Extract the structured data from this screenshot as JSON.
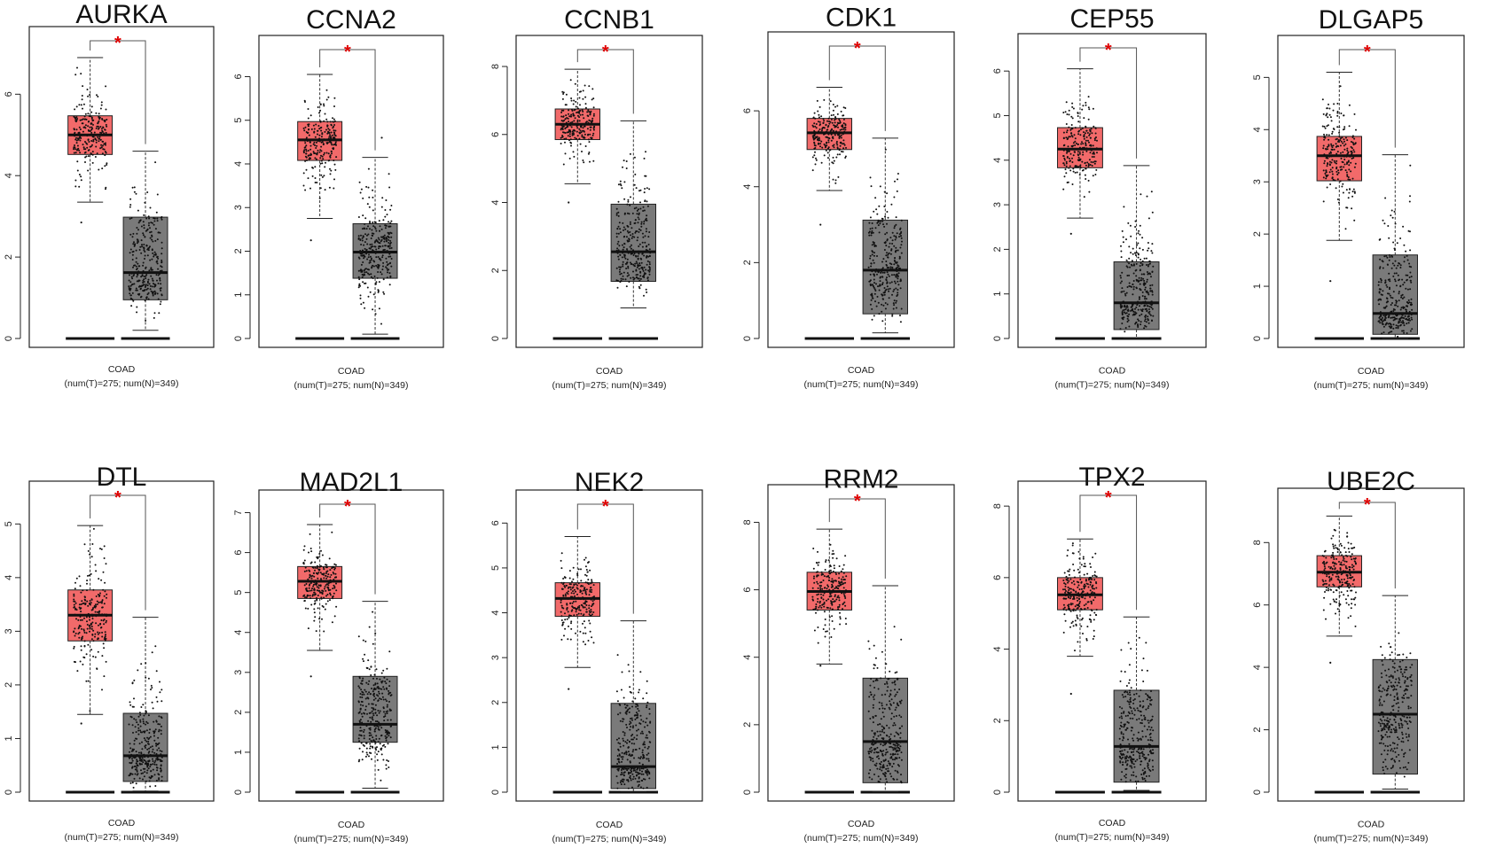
{
  "chart_data": [
    {
      "type": "box",
      "title": "AURKA",
      "ylim": [
        0,
        7.4
      ],
      "yticks": [
        0,
        2,
        4,
        6
      ],
      "xlabel": "COAD",
      "xsublabel": "(num(T)=275; num(N)=349)",
      "significance": "*",
      "series": [
        {
          "name": "T",
          "color": "#f26a6a",
          "n": 275,
          "whisker_low": 3.35,
          "q1": 4.52,
          "median": 5.0,
          "q3": 5.47,
          "whisker_high": 6.9,
          "min_point": 2.85
        },
        {
          "name": "N",
          "color": "#7a7a7a",
          "n": 349,
          "whisker_low": 0.2,
          "q1": 0.95,
          "median": 1.62,
          "q3": 2.98,
          "whisker_high": 4.6
        }
      ]
    },
    {
      "type": "box",
      "title": "CCNA2",
      "ylim": [
        0,
        6.7
      ],
      "yticks": [
        0,
        1,
        2,
        3,
        4,
        5,
        6
      ],
      "xlabel": "COAD",
      "xsublabel": "(num(T)=275; num(N)=349)",
      "significance": "*",
      "series": [
        {
          "name": "T",
          "color": "#f26a6a",
          "n": 275,
          "whisker_low": 2.75,
          "q1": 4.08,
          "median": 4.55,
          "q3": 4.97,
          "whisker_high": 6.05,
          "min_point": 2.25
        },
        {
          "name": "N",
          "color": "#7a7a7a",
          "n": 349,
          "whisker_low": 0.1,
          "q1": 1.38,
          "median": 1.98,
          "q3": 2.63,
          "whisker_high": 4.15,
          "max_point": 4.6
        }
      ]
    },
    {
      "type": "box",
      "title": "CCNB1",
      "ylim": [
        0,
        8.6
      ],
      "yticks": [
        0,
        2,
        4,
        6,
        8
      ],
      "xlabel": "COAD",
      "xsublabel": "(num(T)=275; num(N)=349)",
      "significance": "*",
      "series": [
        {
          "name": "T",
          "color": "#f26a6a",
          "n": 275,
          "whisker_low": 4.55,
          "q1": 5.85,
          "median": 6.3,
          "q3": 6.75,
          "whisker_high": 7.92,
          "min_point": 4.0
        },
        {
          "name": "N",
          "color": "#7a7a7a",
          "n": 349,
          "whisker_low": 0.9,
          "q1": 1.68,
          "median": 2.55,
          "q3": 3.95,
          "whisker_high": 6.4
        }
      ]
    },
    {
      "type": "box",
      "title": "CDK1",
      "ylim": [
        0,
        7.8
      ],
      "yticks": [
        0,
        2,
        4,
        6
      ],
      "xlabel": "COAD",
      "xsublabel": "(num(T)=275; num(N)=349)",
      "significance": "*",
      "series": [
        {
          "name": "T",
          "color": "#f26a6a",
          "n": 275,
          "whisker_low": 3.9,
          "q1": 4.98,
          "median": 5.42,
          "q3": 5.8,
          "whisker_high": 6.62,
          "min_point": 3.0
        },
        {
          "name": "N",
          "color": "#7a7a7a",
          "n": 349,
          "whisker_low": 0.15,
          "q1": 0.65,
          "median": 1.8,
          "q3": 3.12,
          "whisker_high": 5.28
        }
      ]
    },
    {
      "type": "box",
      "title": "CEP55",
      "ylim": [
        0,
        6.6
      ],
      "yticks": [
        0,
        1,
        2,
        3,
        4,
        5,
        6
      ],
      "xlabel": "COAD",
      "xsublabel": "(num(T)=275; num(N)=349)",
      "significance": "*",
      "series": [
        {
          "name": "T",
          "color": "#f26a6a",
          "n": 275,
          "whisker_low": 2.7,
          "q1": 3.83,
          "median": 4.25,
          "q3": 4.73,
          "whisker_high": 6.05,
          "min_point": 2.35
        },
        {
          "name": "N",
          "color": "#7a7a7a",
          "n": 349,
          "whisker_low": 0.02,
          "q1": 0.2,
          "median": 0.8,
          "q3": 1.72,
          "whisker_high": 3.88
        }
      ]
    },
    {
      "type": "box",
      "title": "DLGAP5",
      "ylim": [
        0,
        5.6
      ],
      "yticks": [
        0,
        1,
        2,
        3,
        4,
        5
      ],
      "xlabel": "COAD",
      "xsublabel": "(num(T)=275; num(N)=349)",
      "significance": "*",
      "series": [
        {
          "name": "T",
          "color": "#f26a6a",
          "n": 275,
          "whisker_low": 1.88,
          "q1": 3.02,
          "median": 3.5,
          "q3": 3.87,
          "whisker_high": 5.1,
          "min_point": 1.1
        },
        {
          "name": "N",
          "color": "#7a7a7a",
          "n": 349,
          "whisker_low": 0.0,
          "q1": 0.08,
          "median": 0.48,
          "q3": 1.6,
          "whisker_high": 3.52
        }
      ]
    },
    {
      "type": "box",
      "title": "DTL",
      "ylim": [
        0,
        5.6
      ],
      "yticks": [
        0,
        1,
        2,
        3,
        4,
        5
      ],
      "xlabel": "COAD",
      "xsublabel": "(num(T)=275; num(N)=349)",
      "significance": "*",
      "series": [
        {
          "name": "T",
          "color": "#f26a6a",
          "n": 275,
          "whisker_low": 1.45,
          "q1": 2.82,
          "median": 3.3,
          "q3": 3.77,
          "whisker_high": 4.97,
          "min_point": 1.28
        },
        {
          "name": "N",
          "color": "#7a7a7a",
          "n": 349,
          "whisker_low": 0.02,
          "q1": 0.2,
          "median": 0.68,
          "q3": 1.47,
          "whisker_high": 3.26
        }
      ]
    },
    {
      "type": "box",
      "title": "MAD2L1",
      "ylim": [
        0,
        7.3
      ],
      "yticks": [
        0,
        1,
        2,
        3,
        4,
        5,
        6,
        7
      ],
      "xlabel": "COAD",
      "xsublabel": "(num(T)=275; num(N)=349)",
      "significance": "*",
      "series": [
        {
          "name": "T",
          "color": "#f26a6a",
          "n": 275,
          "whisker_low": 3.55,
          "q1": 4.85,
          "median": 5.28,
          "q3": 5.65,
          "whisker_high": 6.7,
          "min_point": 2.9
        },
        {
          "name": "N",
          "color": "#7a7a7a",
          "n": 349,
          "whisker_low": 0.1,
          "q1": 1.25,
          "median": 1.7,
          "q3": 2.9,
          "whisker_high": 4.78
        }
      ]
    },
    {
      "type": "box",
      "title": "NEK2",
      "ylim": [
        0,
        6.5
      ],
      "yticks": [
        0,
        1,
        2,
        3,
        4,
        5,
        6
      ],
      "xlabel": "COAD",
      "xsublabel": "(num(T)=275; num(N)=349)",
      "significance": "*",
      "series": [
        {
          "name": "T",
          "color": "#f26a6a",
          "n": 275,
          "whisker_low": 2.78,
          "q1": 3.92,
          "median": 4.32,
          "q3": 4.67,
          "whisker_high": 5.7,
          "min_point": 2.3
        },
        {
          "name": "N",
          "color": "#7a7a7a",
          "n": 349,
          "whisker_low": 0.02,
          "q1": 0.08,
          "median": 0.57,
          "q3": 1.98,
          "whisker_high": 3.82
        }
      ]
    },
    {
      "type": "box",
      "title": "RRM2",
      "ylim": [
        0,
        8.8
      ],
      "yticks": [
        0,
        2,
        4,
        6,
        8
      ],
      "xlabel": "COAD",
      "xsublabel": "(num(T)=275; num(N)=349)",
      "significance": "*",
      "series": [
        {
          "name": "T",
          "color": "#f26a6a",
          "n": 275,
          "whisker_low": 3.8,
          "q1": 5.4,
          "median": 5.95,
          "q3": 6.52,
          "whisker_high": 7.8,
          "min_point": 3.75
        },
        {
          "name": "N",
          "color": "#7a7a7a",
          "n": 349,
          "whisker_low": 0.02,
          "q1": 0.28,
          "median": 1.5,
          "q3": 3.38,
          "whisker_high": 6.12
        }
      ]
    },
    {
      "type": "box",
      "title": "TPX2",
      "ylim": [
        0,
        8.4
      ],
      "yticks": [
        0,
        2,
        4,
        6,
        8
      ],
      "xlabel": "COAD",
      "xsublabel": "(num(T)=275; num(N)=349)",
      "significance": "*",
      "series": [
        {
          "name": "T",
          "color": "#f26a6a",
          "n": 275,
          "whisker_low": 3.8,
          "q1": 5.1,
          "median": 5.52,
          "q3": 6.0,
          "whisker_high": 7.08,
          "min_point": 2.75
        },
        {
          "name": "N",
          "color": "#7a7a7a",
          "n": 349,
          "whisker_low": 0.05,
          "q1": 0.28,
          "median": 1.28,
          "q3": 2.85,
          "whisker_high": 4.9
        }
      ]
    },
    {
      "type": "box",
      "title": "UBE2C",
      "ylim": [
        0,
        9.4
      ],
      "yticks": [
        0,
        2,
        4,
        6,
        8
      ],
      "xlabel": "COAD",
      "xsublabel": "(num(T)=275; num(N)=349)",
      "significance": "*",
      "series": [
        {
          "name": "T",
          "color": "#f26a6a",
          "n": 275,
          "whisker_low": 5.0,
          "q1": 6.58,
          "median": 7.05,
          "q3": 7.58,
          "whisker_high": 8.85,
          "min_point": 4.15
        },
        {
          "name": "N",
          "color": "#7a7a7a",
          "n": 349,
          "whisker_low": 0.1,
          "q1": 0.58,
          "median": 2.5,
          "q3": 4.25,
          "whisker_high": 6.3
        }
      ]
    }
  ]
}
